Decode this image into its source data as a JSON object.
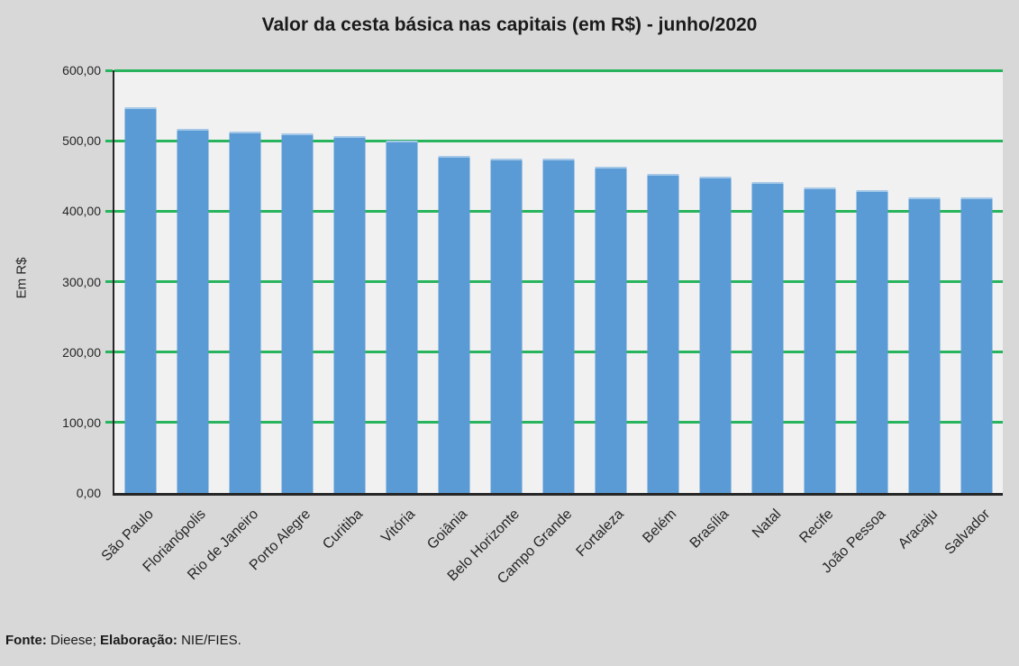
{
  "chart_data": {
    "type": "bar",
    "title": "Valor da cesta básica nas capitais (em R$) - junho/2020",
    "ylabel": "Em R$",
    "xlabel": "",
    "categories": [
      "São Paulo",
      "Florianópolis",
      "Rio de Janeiro",
      "Porto Alegre",
      "Curitiba",
      "Vitória",
      "Goiânia",
      "Belo Horizonte",
      "Campo Grande",
      "Fortaleza",
      "Belém",
      "Brasília",
      "Natal",
      "Recife",
      "João Pessoa",
      "Aracaju",
      "Salvador"
    ],
    "values": [
      547,
      517,
      513,
      511,
      506,
      500,
      479,
      475,
      475,
      463,
      453,
      449,
      441,
      434,
      430,
      420,
      420
    ],
    "ylim": [
      0,
      600
    ],
    "ytick_step": 100,
    "ytick_labels": [
      "0,00",
      "100,00",
      "200,00",
      "300,00",
      "400,00",
      "500,00",
      "600,00"
    ],
    "grid": true,
    "legend": false,
    "bar_color": "#5B9BD5",
    "gridline_color": "#28B45C",
    "plot_bg": "#F1F1F1",
    "canvas_bg": "#D8D8D8",
    "axis_color": "#262626"
  },
  "footer": {
    "source_label": "Fonte:",
    "source_value": " Dieese; ",
    "elaboration_label": "Elaboração:",
    "elaboration_value": " NIE/FIES."
  }
}
